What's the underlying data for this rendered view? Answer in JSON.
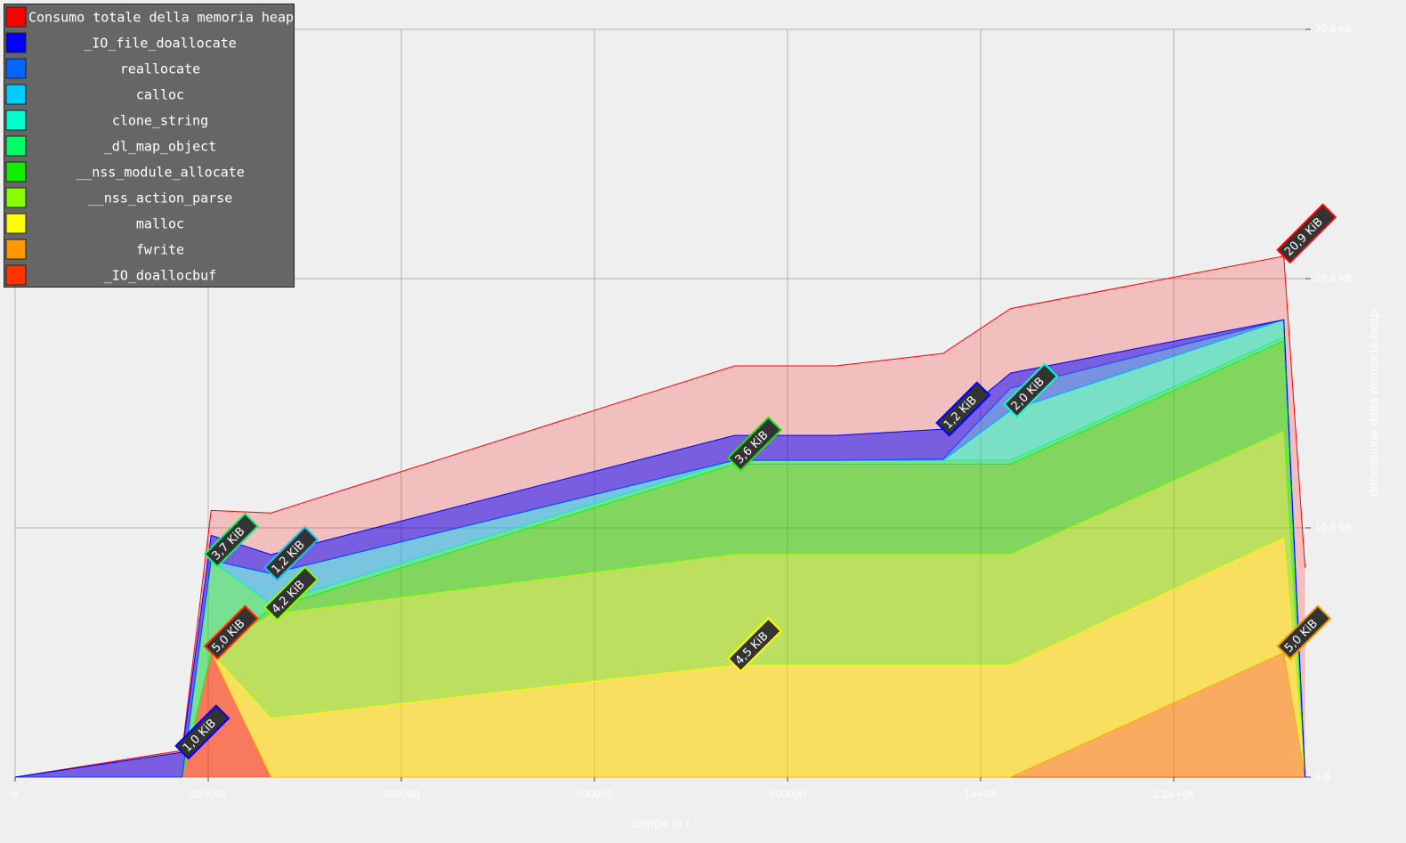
{
  "chart_data": {
    "type": "stacked_area",
    "x_label": "tempo in i",
    "y_label": "dimensione della memoria heap",
    "x": [
      0,
      173000,
      203000,
      265000,
      745000,
      850000,
      961000,
      1031000,
      1314000,
      1336000
    ],
    "xlim": [
      0,
      1336400
    ],
    "xticks": [
      0,
      200000,
      400000,
      600000,
      800000,
      {
        "value": 1000000,
        "label": "1e+06"
      },
      {
        "value": 1200000,
        "label": "1.2e+06"
      }
    ],
    "ylim": [
      0,
      30
    ],
    "yticks": [
      {
        "value": 0,
        "label": "0 B"
      },
      {
        "value": 10,
        "label": "10,0 kB"
      },
      {
        "value": 20,
        "label": "20,0 kB"
      },
      {
        "value": 30,
        "label": "30,0 kB"
      }
    ],
    "grid": true,
    "legend": "top-left",
    "total": {
      "name": "Consumo totale della memoria heap",
      "color": "#ff0000",
      "values": [
        0,
        1.07,
        10.7,
        10.6,
        16.5,
        16.5,
        17.0,
        18.8,
        20.9,
        8.4
      ],
      "value_labels": [
        null,
        null,
        null,
        null,
        null,
        null,
        null,
        null,
        "20,9 KiB",
        null
      ]
    },
    "series": [
      {
        "name": "_IO_file_doallocate",
        "color": "#0000ff",
        "values": [
          0,
          1.0,
          1.0,
          0.77,
          1.0,
          1.0,
          1.2,
          0.6,
          0,
          0
        ],
        "value_labels": [
          null,
          "1,0 KiB",
          null,
          null,
          null,
          null,
          "1,2 KiB",
          null,
          null,
          null
        ]
      },
      {
        "name": "reallocate",
        "color": "#0066ff",
        "values": [
          0,
          0,
          0,
          0,
          0,
          0,
          0.05,
          0.9,
          0,
          0
        ],
        "value_labels": [
          null,
          null,
          null,
          null,
          null,
          null,
          null,
          null,
          null,
          null
        ]
      },
      {
        "name": "calloc",
        "color": "#00ccff",
        "values": [
          0,
          0,
          0,
          1.2,
          0,
          0,
          0,
          0,
          0,
          0
        ],
        "value_labels": [
          null,
          null,
          null,
          "1,2 KiB",
          null,
          null,
          null,
          null,
          null,
          null
        ]
      },
      {
        "name": "clone_string",
        "color": "#00ffcc",
        "values": [
          0,
          0,
          0,
          0,
          0,
          0,
          0,
          2.0,
          0.7,
          0
        ],
        "value_labels": [
          null,
          null,
          null,
          null,
          null,
          null,
          null,
          "2,0 KiB",
          null,
          null
        ]
      },
      {
        "name": "_dl_map_object",
        "color": "#00ff66",
        "values": [
          0,
          0,
          3.7,
          0.2,
          0.15,
          0.15,
          0.15,
          0.15,
          0.15,
          0
        ],
        "value_labels": [
          null,
          null,
          "3,7 KiB",
          null,
          null,
          null,
          null,
          null,
          null,
          null
        ]
      },
      {
        "name": "__nss_module_allocate",
        "color": "#11ee00",
        "values": [
          0,
          0,
          0,
          0.2,
          3.6,
          3.6,
          3.6,
          3.6,
          3.6,
          0
        ],
        "value_labels": [
          null,
          null,
          null,
          null,
          "3,6 KiB",
          null,
          null,
          null,
          null,
          null
        ]
      },
      {
        "name": "__nss_action_parse",
        "color": "#88ff00",
        "values": [
          0,
          0,
          0,
          4.2,
          4.46,
          4.46,
          4.46,
          4.46,
          4.3,
          0
        ],
        "value_labels": [
          null,
          null,
          null,
          "4,2 KiB",
          null,
          null,
          null,
          null,
          null,
          null
        ]
      },
      {
        "name": "malloc",
        "color": "#ffff00",
        "values": [
          0,
          0,
          0,
          2.36,
          4.5,
          4.5,
          4.5,
          4.5,
          4.6,
          0
        ],
        "value_labels": [
          null,
          null,
          null,
          null,
          "4,5 KiB",
          null,
          null,
          null,
          null,
          null
        ]
      },
      {
        "name": "fwrite",
        "color": "#ff9900",
        "values": [
          0,
          0,
          0,
          0,
          0,
          0,
          0,
          0,
          5.0,
          0
        ],
        "value_labels": [
          null,
          null,
          null,
          null,
          null,
          null,
          null,
          null,
          "5,0 KiB",
          null
        ]
      },
      {
        "name": "_IO_doallocbuf",
        "color": "#ff3300",
        "values": [
          0,
          0,
          5.0,
          0,
          0,
          0,
          0,
          0,
          0,
          0
        ],
        "value_labels": [
          null,
          null,
          "5,0 KiB",
          null,
          null,
          null,
          null,
          null,
          null,
          null
        ]
      }
    ]
  }
}
